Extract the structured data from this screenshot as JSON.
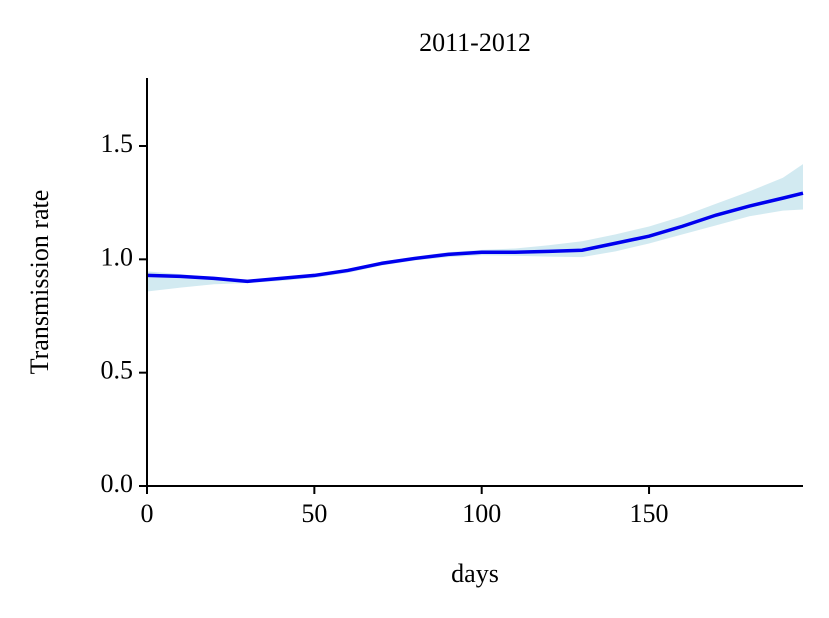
{
  "chart_data": {
    "type": "line",
    "title": "2011-2012",
    "x_label": "days",
    "y_label": "Transmission rate",
    "x": [
      0,
      10,
      20,
      30,
      40,
      50,
      60,
      70,
      80,
      90,
      100,
      110,
      120,
      130,
      140,
      150,
      160,
      170,
      180,
      190,
      196
    ],
    "series": [
      {
        "color": "#0000ee",
        "values": [
          0.929,
          0.925,
          0.916,
          0.903,
          0.916,
          0.929,
          0.951,
          0.982,
          1.004,
          1.022,
          1.031,
          1.031,
          1.035,
          1.04,
          1.071,
          1.102,
          1.146,
          1.195,
          1.235,
          1.27,
          1.292
        ]
      }
    ],
    "band": {
      "color": "#add8e6",
      "upper": [
        0.947,
        0.935,
        0.92,
        0.905,
        0.92,
        0.935,
        0.958,
        0.99,
        1.012,
        1.032,
        1.042,
        1.048,
        1.062,
        1.08,
        1.11,
        1.145,
        1.19,
        1.245,
        1.3,
        1.36,
        1.42
      ],
      "lower": [
        0.858,
        0.875,
        0.89,
        0.895,
        0.905,
        0.918,
        0.94,
        0.972,
        0.995,
        1.01,
        1.018,
        1.016,
        1.012,
        1.01,
        1.035,
        1.07,
        1.11,
        1.15,
        1.19,
        1.215,
        1.22
      ]
    },
    "xlim": [
      0,
      196
    ],
    "ylim": [
      0,
      1.8
    ],
    "xticks": [
      0,
      50,
      100,
      150
    ],
    "yticks": [
      {
        "value": 0,
        "label": "0.0"
      },
      {
        "value": 0.5,
        "label": "0.5"
      },
      {
        "value": 1,
        "label": "1.0"
      },
      {
        "value": 1.5,
        "label": "1.5"
      }
    ]
  }
}
